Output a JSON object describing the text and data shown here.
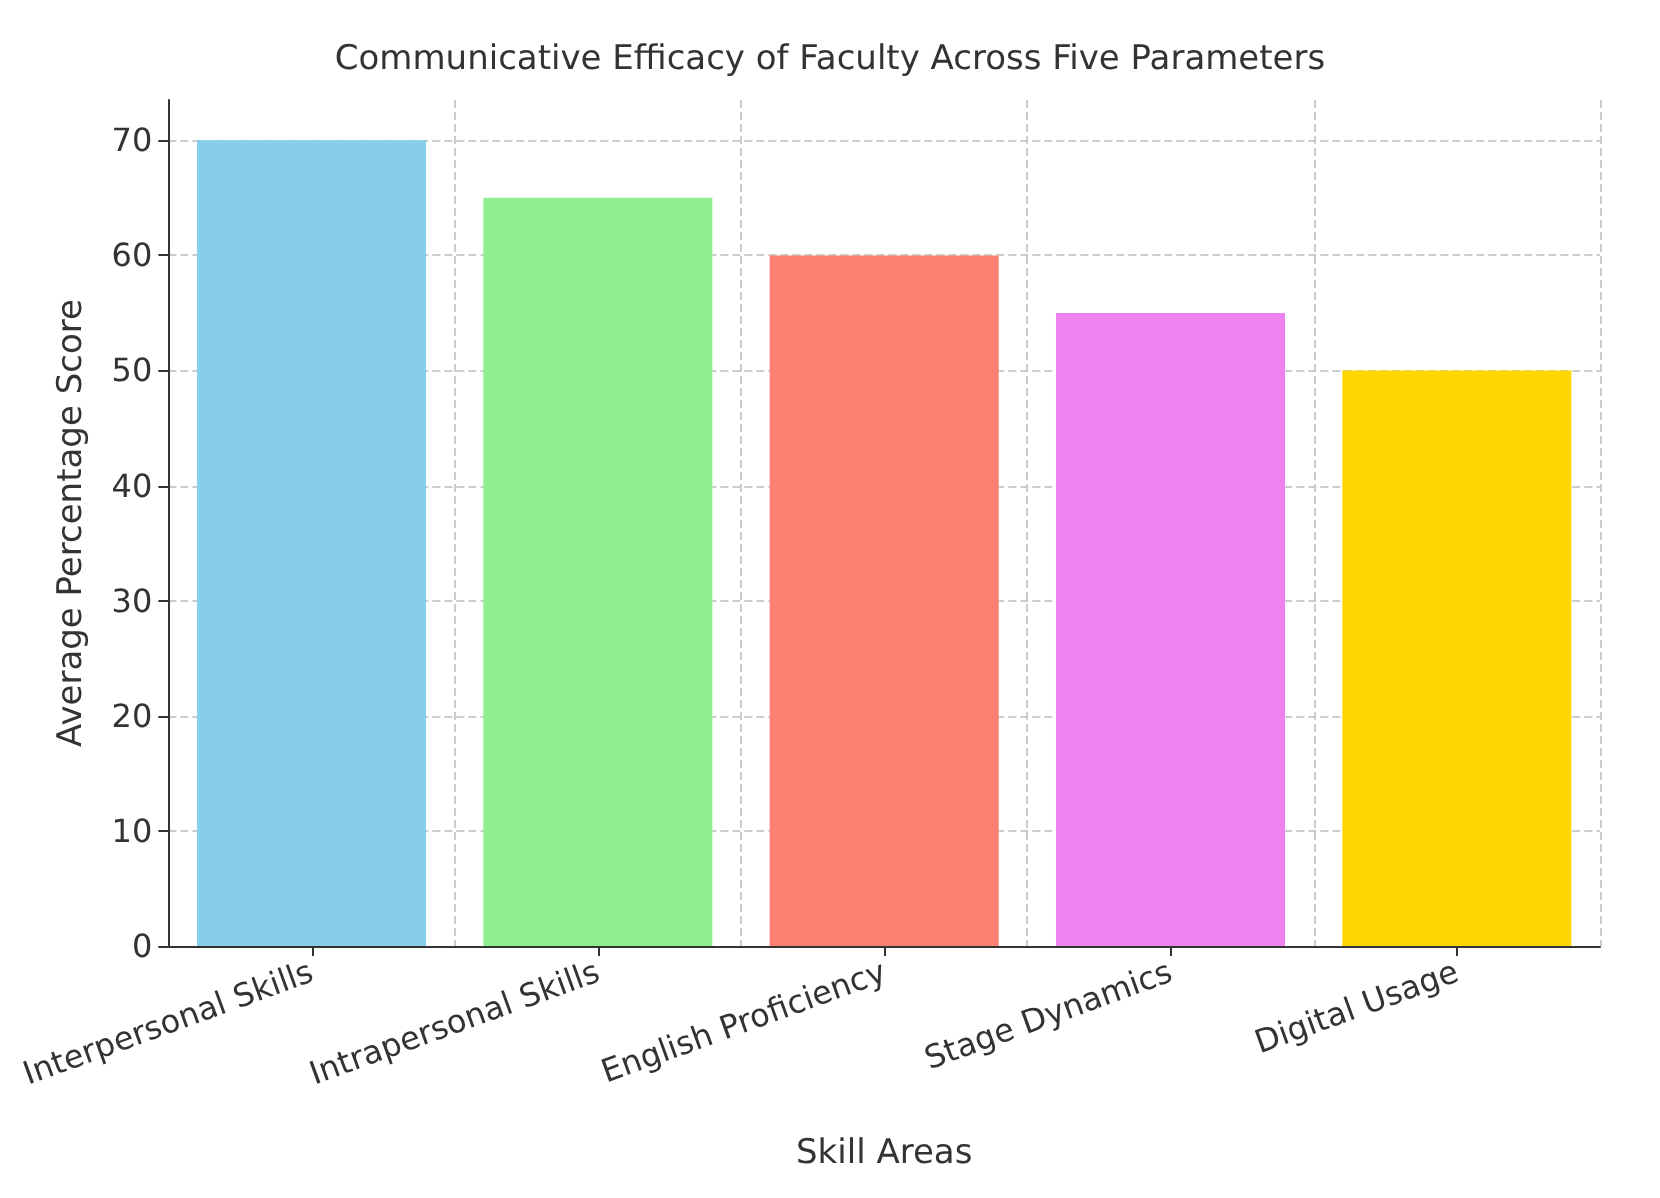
{
  "chart_data": {
    "type": "bar",
    "title": "Communicative Efficacy of Faculty Across Five Parameters",
    "xlabel": "Skill Areas",
    "ylabel": "Average Percentage Score",
    "categories": [
      "Interpersonal Skills",
      "Intrapersonal Skills",
      "English Proficiency",
      "Stage Dynamics",
      "Digital Usage"
    ],
    "values": [
      70,
      65,
      60,
      55,
      50
    ],
    "colors": [
      "#87ceeb",
      "#90ee90",
      "#fa8072",
      "#ee82ee",
      "#ffd700"
    ],
    "ylim": [
      0,
      73.5
    ],
    "yticks": [
      0,
      10,
      20,
      30,
      40,
      50,
      60,
      70
    ],
    "grid": true
  }
}
